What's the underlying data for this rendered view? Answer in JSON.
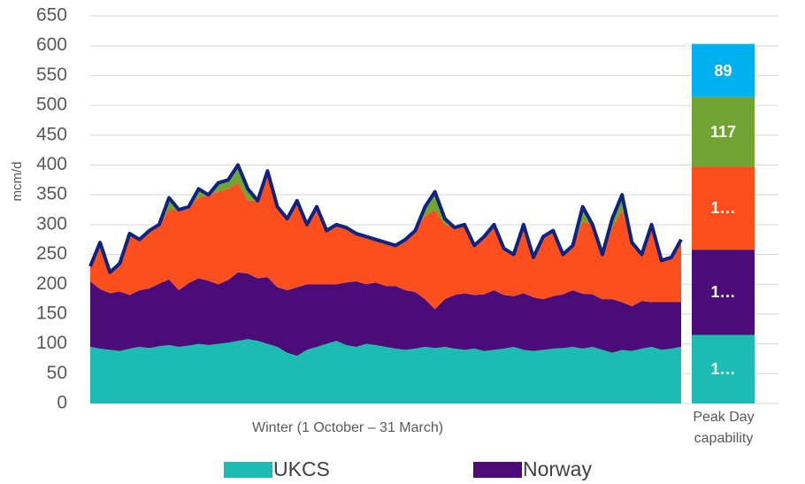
{
  "chart_data": [
    {
      "type": "area",
      "y_label": "mcm/d",
      "x_label": "Winter (1 October – 31 March)",
      "ylim": [
        0,
        650
      ],
      "yticks": [
        0,
        50,
        100,
        150,
        200,
        250,
        300,
        350,
        400,
        450,
        500,
        550,
        600,
        650
      ],
      "grid": true,
      "legend": "bottom",
      "series": [
        {
          "name": "UKCS",
          "color": "#1cbcb2",
          "style": "area",
          "values": [
            95,
            92,
            90,
            88,
            92,
            95,
            93,
            96,
            98,
            95,
            97,
            100,
            98,
            100,
            102,
            105,
            108,
            105,
            100,
            95,
            85,
            80,
            90,
            95,
            100,
            105,
            98,
            95,
            100,
            98,
            95,
            92,
            90,
            92,
            95,
            93,
            95,
            92,
            90,
            92,
            88,
            90,
            92,
            95,
            90,
            88,
            90,
            92,
            93,
            95,
            92,
            95,
            90,
            85,
            90,
            88,
            92,
            95,
            90,
            92,
            95
          ]
        },
        {
          "name": "Norway",
          "color": "#4b0c78",
          "style": "area",
          "values": [
            110,
            100,
            95,
            100,
            90,
            95,
            100,
            105,
            110,
            95,
            105,
            110,
            108,
            100,
            105,
            115,
            110,
            105,
            112,
            100,
            105,
            115,
            110,
            105,
            100,
            95,
            105,
            110,
            100,
            105,
            102,
            105,
            100,
            95,
            80,
            65,
            80,
            90,
            95,
            90,
            95,
            100,
            90,
            85,
            95,
            90,
            85,
            88,
            90,
            95,
            92,
            88,
            85,
            90,
            80,
            75,
            80,
            75,
            80,
            78,
            75
          ]
        },
        {
          "color": "#fc4f1d",
          "style": "area",
          "values": [
            25,
            78,
            35,
            47,
            103,
            85,
            97,
            99,
            117,
            135,
            128,
            135,
            144,
            155,
            153,
            150,
            122,
            130,
            168,
            135,
            120,
            145,
            100,
            130,
            90,
            100,
            92,
            80,
            80,
            72,
            73,
            68,
            85,
            103,
            140,
            167,
            125,
            113,
            115,
            83,
            97,
            110,
            78,
            70,
            115,
            67,
            105,
            110,
            67,
            75,
            121,
            117,
            75,
            120,
            155,
            107,
            78,
            120,
            70,
            75,
            105
          ]
        },
        {
          "color": "#73a333",
          "style": "area",
          "values": [
            0,
            0,
            0,
            0,
            0,
            0,
            0,
            0,
            20,
            0,
            0,
            15,
            0,
            15,
            15,
            30,
            20,
            0,
            10,
            0,
            0,
            0,
            0,
            0,
            0,
            0,
            0,
            0,
            0,
            0,
            0,
            0,
            0,
            0,
            15,
            30,
            10,
            0,
            0,
            0,
            0,
            0,
            0,
            0,
            0,
            0,
            0,
            0,
            0,
            0,
            25,
            0,
            0,
            15,
            25,
            0,
            0,
            10,
            0,
            0,
            0
          ]
        },
        {
          "color": "#0b2384",
          "style": "line",
          "values": [
            230,
            270,
            220,
            235,
            285,
            275,
            290,
            300,
            345,
            325,
            330,
            360,
            350,
            370,
            375,
            400,
            360,
            340,
            390,
            330,
            310,
            340,
            300,
            330,
            290,
            300,
            295,
            285,
            280,
            275,
            270,
            265,
            275,
            290,
            330,
            355,
            310,
            295,
            300,
            265,
            280,
            300,
            260,
            250,
            300,
            245,
            280,
            290,
            250,
            265,
            330,
            300,
            250,
            310,
            350,
            270,
            250,
            300,
            240,
            245,
            275
          ]
        }
      ]
    },
    {
      "type": "bar",
      "categories": [
        "Peak Day capability"
      ],
      "series": [
        {
          "color": "#1cbcb2",
          "values": [
            115
          ],
          "value_labels": [
            "1…"
          ]
        },
        {
          "color": "#4b0c78",
          "values": [
            143
          ],
          "value_labels": [
            "1…"
          ]
        },
        {
          "color": "#fc4f1d",
          "values": [
            139
          ],
          "value_labels": [
            "1…"
          ]
        },
        {
          "color": "#73a333",
          "values": [
            117
          ],
          "value_labels": [
            "117"
          ]
        },
        {
          "color": "#00b0f0",
          "values": [
            89
          ],
          "value_labels": [
            "89"
          ]
        }
      ]
    }
  ]
}
